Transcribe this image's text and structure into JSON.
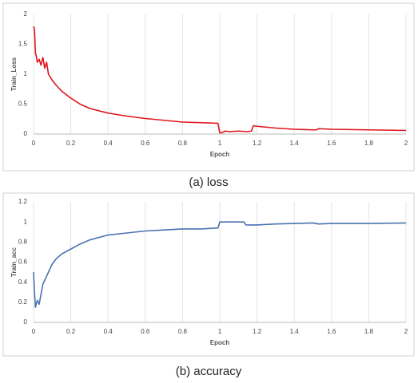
{
  "chart_data": [
    {
      "type": "line",
      "caption": "(a) loss",
      "xlabel": "Epoch",
      "ylabel": "Train_Loss",
      "color": "#e0121b",
      "x": [
        0,
        0.005,
        0.01,
        0.015,
        0.02,
        0.03,
        0.04,
        0.05,
        0.06,
        0.07,
        0.08,
        0.1,
        0.12,
        0.15,
        0.2,
        0.25,
        0.3,
        0.4,
        0.5,
        0.6,
        0.7,
        0.8,
        0.9,
        0.99,
        1.0,
        1.01,
        1.03,
        1.05,
        1.1,
        1.15,
        1.17,
        1.18,
        1.2,
        1.3,
        1.4,
        1.5,
        1.52,
        1.53,
        1.6,
        1.8,
        2.0
      ],
      "values": [
        1.8,
        1.75,
        1.35,
        1.3,
        1.2,
        1.25,
        1.15,
        1.28,
        1.1,
        1.2,
        1.0,
        0.9,
        0.82,
        0.72,
        0.6,
        0.5,
        0.43,
        0.35,
        0.3,
        0.26,
        0.23,
        0.2,
        0.19,
        0.18,
        0.02,
        0.02,
        0.05,
        0.04,
        0.05,
        0.04,
        0.05,
        0.14,
        0.13,
        0.1,
        0.08,
        0.07,
        0.07,
        0.09,
        0.08,
        0.07,
        0.06
      ],
      "xlim": [
        0,
        2
      ],
      "xticks": [
        0,
        0.2,
        0.4,
        0.6,
        0.8,
        1,
        1.2,
        1.4,
        1.6,
        1.8,
        2
      ],
      "ylim": [
        0,
        2
      ],
      "yticks": [
        0,
        0.5,
        1,
        1.5,
        2
      ],
      "xgrid": true
    },
    {
      "type": "line",
      "caption": "(b) accuracy",
      "xlabel": "Epoch",
      "ylabel": "Train_acc",
      "color": "#4a72b0",
      "x": [
        0,
        0.005,
        0.01,
        0.02,
        0.03,
        0.04,
        0.05,
        0.06,
        0.08,
        0.1,
        0.12,
        0.15,
        0.2,
        0.25,
        0.3,
        0.4,
        0.5,
        0.6,
        0.7,
        0.8,
        0.9,
        0.99,
        1.0,
        1.05,
        1.1,
        1.13,
        1.14,
        1.2,
        1.3,
        1.4,
        1.5,
        1.53,
        1.6,
        1.8,
        2.0
      ],
      "values": [
        0.5,
        0.3,
        0.15,
        0.22,
        0.18,
        0.28,
        0.38,
        0.42,
        0.5,
        0.58,
        0.63,
        0.68,
        0.73,
        0.78,
        0.82,
        0.87,
        0.89,
        0.91,
        0.92,
        0.93,
        0.93,
        0.94,
        1.0,
        1.0,
        1.0,
        1.0,
        0.97,
        0.97,
        0.98,
        0.985,
        0.99,
        0.98,
        0.985,
        0.985,
        0.99
      ],
      "xlim": [
        0,
        2
      ],
      "xticks": [
        0,
        0.2,
        0.4,
        0.6,
        0.8,
        1,
        1.2,
        1.4,
        1.6,
        1.8,
        2
      ],
      "ylim": [
        0,
        1.2
      ],
      "yticks": [
        0,
        0.2,
        0.4,
        0.6,
        0.8,
        1,
        1.2
      ],
      "xgrid": true
    }
  ]
}
